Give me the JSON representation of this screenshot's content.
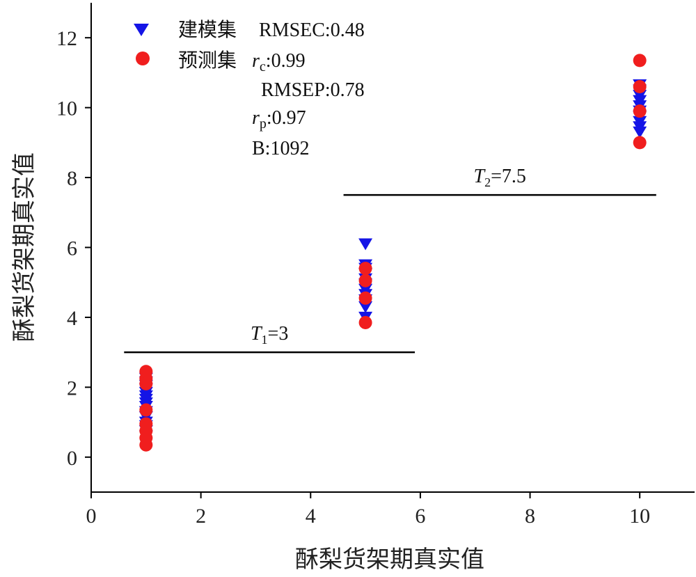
{
  "chart_data": {
    "type": "scatter",
    "xlabel": "酥梨货架期真实值",
    "ylabel": "酥梨货架期真实值",
    "xlim": [
      0,
      11
    ],
    "ylim": [
      -1,
      13
    ],
    "x_ticks": [
      "0",
      "2",
      "4",
      "6",
      "8",
      "10"
    ],
    "y_ticks": [
      "0",
      "2",
      "4",
      "6",
      "8",
      "10",
      "12"
    ],
    "grid": false,
    "legend_position": "top-left",
    "series": [
      {
        "name": "建模集",
        "marker": "triangle-down",
        "color": "#1414e6",
        "points": [
          [
            1,
            0.6
          ],
          [
            1,
            0.75
          ],
          [
            1,
            0.9
          ],
          [
            1,
            1.0
          ],
          [
            1,
            1.15
          ],
          [
            1,
            1.3
          ],
          [
            1,
            1.45
          ],
          [
            1,
            1.55
          ],
          [
            1,
            1.65
          ],
          [
            1,
            1.75
          ],
          [
            1,
            1.85
          ],
          [
            1,
            1.95
          ],
          [
            1,
            2.05
          ],
          [
            1,
            2.15
          ],
          [
            1,
            2.25
          ],
          [
            5,
            4.0
          ],
          [
            5,
            4.3
          ],
          [
            5,
            4.5
          ],
          [
            5,
            4.65
          ],
          [
            5,
            4.8
          ],
          [
            5,
            4.95
          ],
          [
            5,
            5.1
          ],
          [
            5,
            5.25
          ],
          [
            5,
            5.4
          ],
          [
            5,
            5.5
          ],
          [
            5,
            6.1
          ],
          [
            10,
            9.3
          ],
          [
            10,
            9.45
          ],
          [
            10,
            9.6
          ],
          [
            10,
            9.75
          ],
          [
            10,
            9.9
          ],
          [
            10,
            10.05
          ],
          [
            10,
            10.2
          ],
          [
            10,
            10.35
          ],
          [
            10,
            10.5
          ],
          [
            10,
            10.65
          ]
        ]
      },
      {
        "name": "预测集",
        "marker": "circle",
        "color": "#f01e1e",
        "points": [
          [
            1,
            0.35
          ],
          [
            1,
            0.55
          ],
          [
            1,
            0.75
          ],
          [
            1,
            0.95
          ],
          [
            1,
            1.35
          ],
          [
            1,
            2.1
          ],
          [
            1,
            2.25
          ],
          [
            1,
            2.45
          ],
          [
            5,
            3.85
          ],
          [
            5,
            4.55
          ],
          [
            5,
            5.05
          ],
          [
            5,
            5.4
          ],
          [
            10,
            9.0
          ],
          [
            10,
            9.9
          ],
          [
            10,
            10.6
          ],
          [
            10,
            11.35
          ]
        ]
      }
    ],
    "annotations": {
      "rmsec": "RMSEC:0.48",
      "rc_base": "r",
      "rc_sub": "c",
      "rc_val": ":0.99",
      "rmsep": "RMSEP:0.78",
      "rp_base": "r",
      "rp_sub": "p",
      "rp_val": ":0.97",
      "b": "B:1092"
    },
    "thresholds": [
      {
        "base": "T",
        "sub": "1",
        "text": "=3",
        "value": 3,
        "x_range": [
          0.6,
          5.9
        ]
      },
      {
        "base": "T",
        "sub": "2",
        "text": "=7.5",
        "value": 7.5,
        "x_range": [
          4.6,
          10.3
        ]
      }
    ]
  }
}
